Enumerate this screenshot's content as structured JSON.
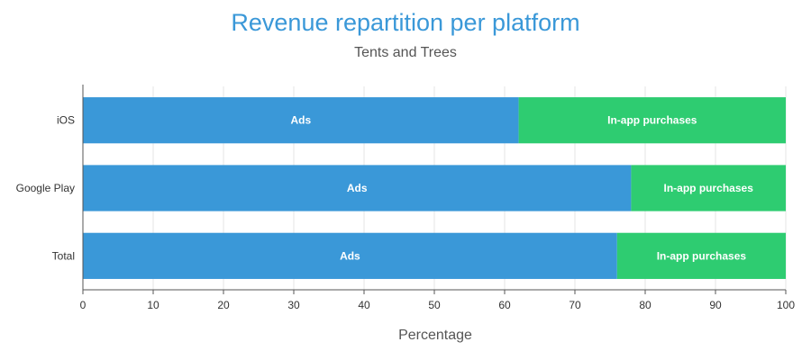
{
  "chart_data": {
    "type": "bar",
    "orientation": "horizontal",
    "stacked": true,
    "title": "Revenue repartition per platform",
    "subtitle": "Tents and Trees",
    "xlabel": "Percentage",
    "ylabel": "",
    "xlim": [
      0,
      100
    ],
    "x_ticks": [
      "0",
      "10",
      "20",
      "30",
      "40",
      "50",
      "60",
      "70",
      "80",
      "90",
      "100"
    ],
    "categories": [
      "iOS",
      "Google Play",
      "Total"
    ],
    "series": [
      {
        "name": "Ads",
        "values": [
          62,
          78,
          76
        ],
        "color": "#3a98d8"
      },
      {
        "name": "In-app purchases",
        "values": [
          38,
          22,
          24
        ],
        "color": "#2ecc71"
      }
    ],
    "grid": true,
    "legend": "none"
  }
}
